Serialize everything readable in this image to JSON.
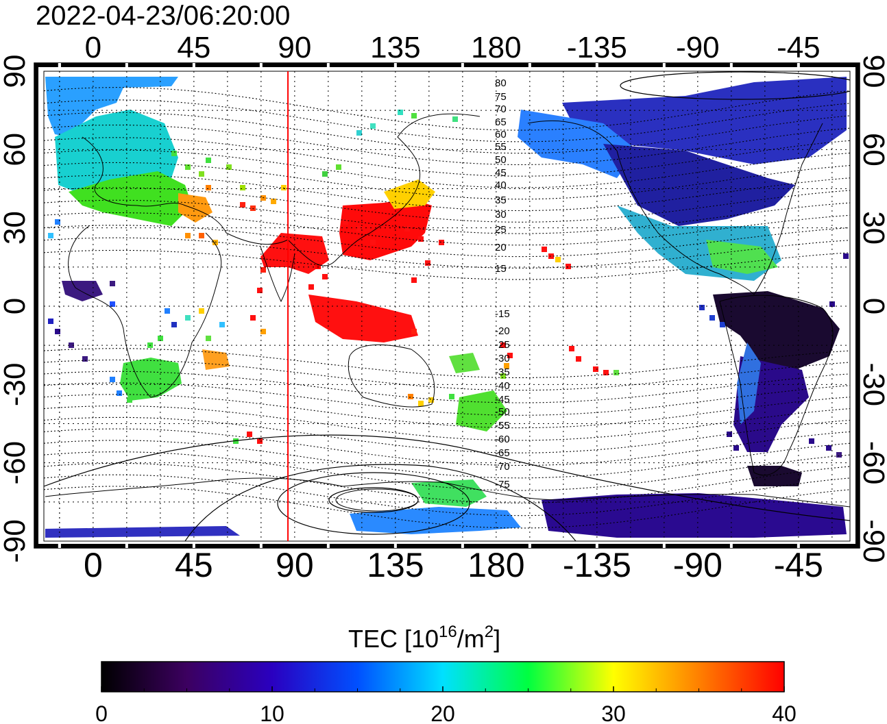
{
  "timestamp": "2022-04-23/06:20:00",
  "map": {
    "lon_ticks": [
      "0",
      "45",
      "90",
      "135",
      "180",
      "-135",
      "-90",
      "-45"
    ],
    "lat_ticks": [
      "90",
      "60",
      "30",
      "0",
      "-30",
      "-60",
      "-90"
    ],
    "meridian_marker_lon": 87,
    "meridian_marker_color": "#ff0000",
    "mlat_labels": [
      "80",
      "75",
      "70",
      "65",
      "60",
      "55",
      "50",
      "45",
      "40",
      "35",
      "30",
      "25",
      "20",
      "15",
      "-15",
      "-20",
      "-25",
      "-30",
      "-35",
      "-40",
      "-45",
      "-50",
      "-55",
      "-60",
      "-65",
      "-70",
      "-75"
    ]
  },
  "colorbar": {
    "title_main": "TEC  [10",
    "title_sup1": "16",
    "title_mid": "/m",
    "title_sup2": "2",
    "title_end": "]",
    "tick_labels": [
      "0",
      "10",
      "20",
      "30",
      "40"
    ],
    "min": 0,
    "max": 40,
    "colors": [
      "#000000",
      "#3c0060",
      "#2a00c0",
      "#0050ff",
      "#00e0ff",
      "#00ff40",
      "#ffff00",
      "#ff8000",
      "#ff0000"
    ]
  }
}
